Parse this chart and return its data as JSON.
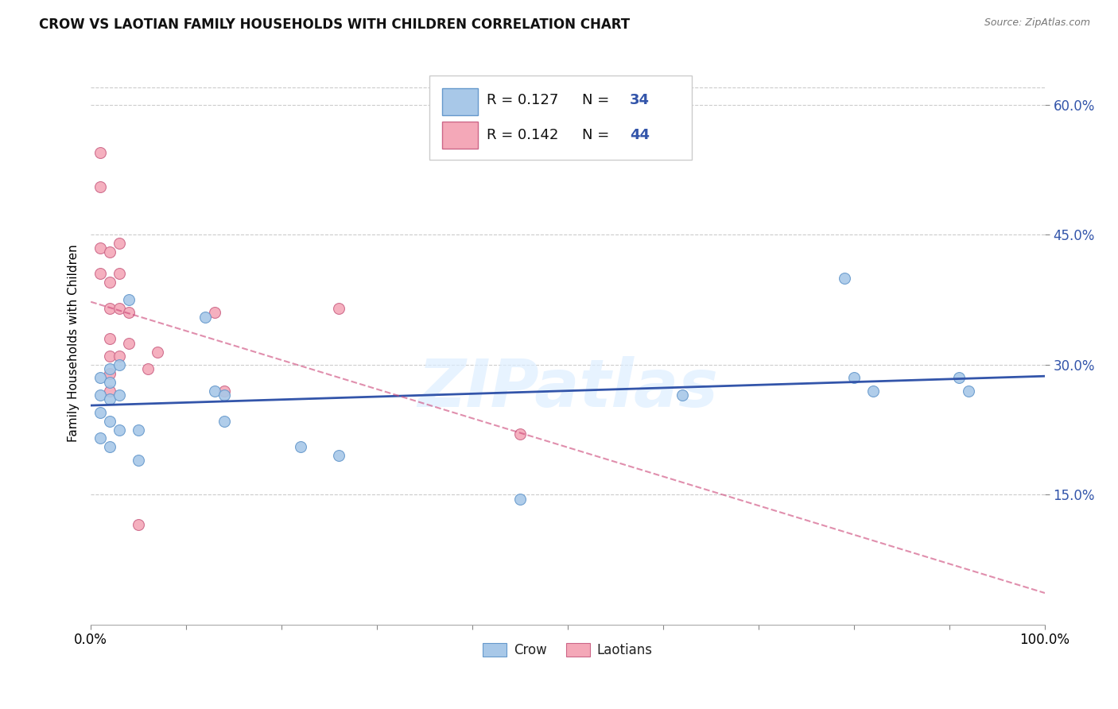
{
  "title": "CROW VS LAOTIAN FAMILY HOUSEHOLDS WITH CHILDREN CORRELATION CHART",
  "source": "Source: ZipAtlas.com",
  "ylabel": "Family Households with Children",
  "ylim": [
    0.0,
    0.65
  ],
  "xlim": [
    0.0,
    1.0
  ],
  "yticks": [
    0.15,
    0.3,
    0.45,
    0.6
  ],
  "ytick_labels": [
    "15.0%",
    "30.0%",
    "45.0%",
    "60.0%"
  ],
  "xticks": [
    0.0,
    0.1,
    0.2,
    0.3,
    0.4,
    0.5,
    0.6,
    0.7,
    0.8,
    0.9,
    1.0
  ],
  "xtick_labels": [
    "0.0%",
    "",
    "",
    "",
    "",
    "",
    "",
    "",
    "",
    "",
    "100.0%"
  ],
  "crow_color": "#a8c8e8",
  "laotian_color": "#f4a8b8",
  "crow_edge_color": "#6699cc",
  "laotian_edge_color": "#cc6688",
  "crow_line_color": "#3355aa",
  "laotian_line_color": "#cc4477",
  "grid_color": "#cccccc",
  "background_color": "#ffffff",
  "watermark": "ZIPatlas",
  "legend_text_color": "#000000",
  "legend_value_color": "#3355aa",
  "crow_x": [
    0.01,
    0.01,
    0.01,
    0.01,
    0.02,
    0.02,
    0.02,
    0.02,
    0.02,
    0.03,
    0.03,
    0.03,
    0.04,
    0.05,
    0.05,
    0.12,
    0.13,
    0.14,
    0.14,
    0.22,
    0.26,
    0.45,
    0.62,
    0.79,
    0.8,
    0.82,
    0.91,
    0.92
  ],
  "crow_y": [
    0.285,
    0.265,
    0.245,
    0.215,
    0.295,
    0.28,
    0.26,
    0.235,
    0.205,
    0.3,
    0.265,
    0.225,
    0.375,
    0.225,
    0.19,
    0.355,
    0.27,
    0.265,
    0.235,
    0.205,
    0.195,
    0.145,
    0.265,
    0.4,
    0.285,
    0.27,
    0.285,
    0.27
  ],
  "laotian_x": [
    0.01,
    0.01,
    0.01,
    0.01,
    0.02,
    0.02,
    0.02,
    0.02,
    0.02,
    0.02,
    0.02,
    0.03,
    0.03,
    0.03,
    0.03,
    0.04,
    0.04,
    0.05,
    0.06,
    0.07,
    0.13,
    0.14,
    0.26,
    0.45
  ],
  "laotian_y": [
    0.545,
    0.505,
    0.435,
    0.405,
    0.43,
    0.395,
    0.365,
    0.33,
    0.31,
    0.29,
    0.27,
    0.44,
    0.405,
    0.365,
    0.31,
    0.36,
    0.325,
    0.115,
    0.295,
    0.315,
    0.36,
    0.27,
    0.365,
    0.22
  ]
}
